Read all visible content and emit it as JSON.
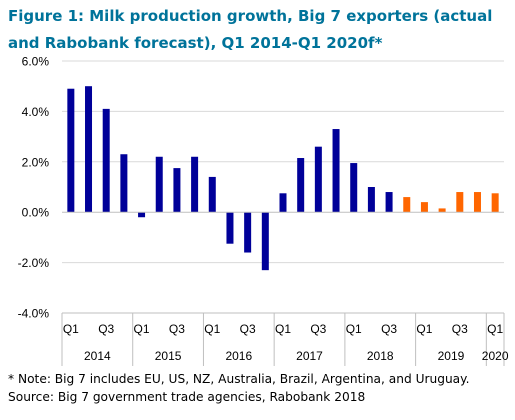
{
  "title": "Figure 1: Milk production growth, Big 7 exporters (actual and Rabobank forecast), Q1 2014-Q1 2020f*",
  "footnotes": {
    "note": "* Note: Big 7 includes EU, US, NZ, Australia, Brazil, Argentina, and Uruguay.",
    "source": "Source: Big 7 government trade agencies, Rabobank 2018"
  },
  "colors": {
    "title": "#00739a",
    "actual": "#000099",
    "forecast": "#ff6600",
    "grid": "#d9d9d9"
  },
  "chart_data": {
    "type": "bar",
    "title": "Figure 1: Milk production growth, Big 7 exporters (actual and Rabobank forecast), Q1 2014-Q1 2020f*",
    "xlabel": "",
    "ylabel": "",
    "ylim": [
      -4.0,
      6.0
    ],
    "yticks": [
      "-4.0%",
      "-2.0%",
      "0.0%",
      "2.0%",
      "4.0%",
      "6.0%"
    ],
    "ytick_values": [
      -4,
      -2,
      0,
      2,
      4,
      6
    ],
    "grid": true,
    "legend": "none",
    "quarter_labels": [
      "Q1",
      "",
      "Q3",
      "",
      "Q1",
      "",
      "Q3",
      "",
      "Q1",
      "",
      "Q3",
      "",
      "Q1",
      "",
      "Q3",
      "",
      "Q1",
      "",
      "Q3",
      "",
      "Q1",
      "",
      "Q3",
      "",
      "Q1"
    ],
    "year_groups": [
      {
        "year": "2014",
        "quarters": 4
      },
      {
        "year": "2015",
        "quarters": 4
      },
      {
        "year": "2016",
        "quarters": 4
      },
      {
        "year": "2017",
        "quarters": 4
      },
      {
        "year": "2018",
        "quarters": 4
      },
      {
        "year": "2019",
        "quarters": 4
      },
      {
        "year": "2020",
        "quarters": 1
      }
    ],
    "series": [
      {
        "values": [
          4.9,
          5.0,
          4.1,
          2.3,
          -0.2,
          2.2,
          1.75,
          2.2,
          1.4,
          -1.25,
          -1.6,
          -2.3,
          0.75,
          2.15,
          2.6,
          3.3,
          1.95,
          1.0,
          0.8
        ]
      },
      {
        "values": [
          null,
          null,
          null,
          null,
          null,
          null,
          null,
          null,
          null,
          null,
          null,
          null,
          null,
          null,
          null,
          null,
          null,
          null,
          null,
          0.6,
          0.4,
          0.15,
          0.8,
          0.8,
          0.75
        ]
      }
    ]
  }
}
